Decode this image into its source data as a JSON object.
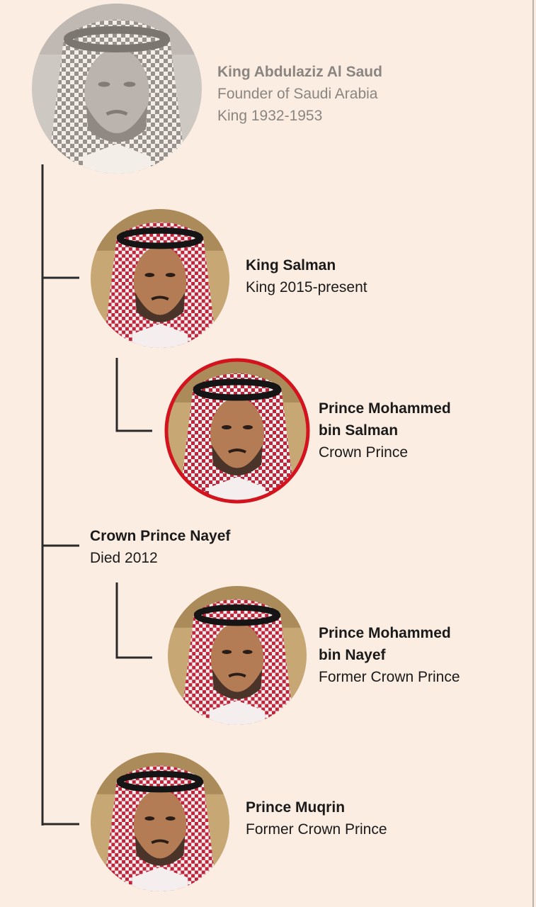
{
  "nodes": [
    {
      "name": [
        "King Abdulaziz Al Saud"
      ],
      "details": [
        "Founder of Saudi Arabia",
        "King 1932-1953"
      ]
    },
    {
      "name": [
        "King Salman"
      ],
      "details": [
        "King 2015-present"
      ]
    },
    {
      "name": [
        "Prince Mohammed",
        "bin Salman"
      ],
      "details": [
        "Crown Prince"
      ]
    },
    {
      "name": [
        "Crown Prince Nayef"
      ],
      "details": [
        "Died 2012"
      ]
    },
    {
      "name": [
        "Prince Mohammed",
        "bin Nayef"
      ],
      "details": [
        "Former Crown Prince"
      ]
    },
    {
      "name": [
        "Prince Muqrin"
      ],
      "details": [
        "Former Crown Prince"
      ]
    }
  ]
}
